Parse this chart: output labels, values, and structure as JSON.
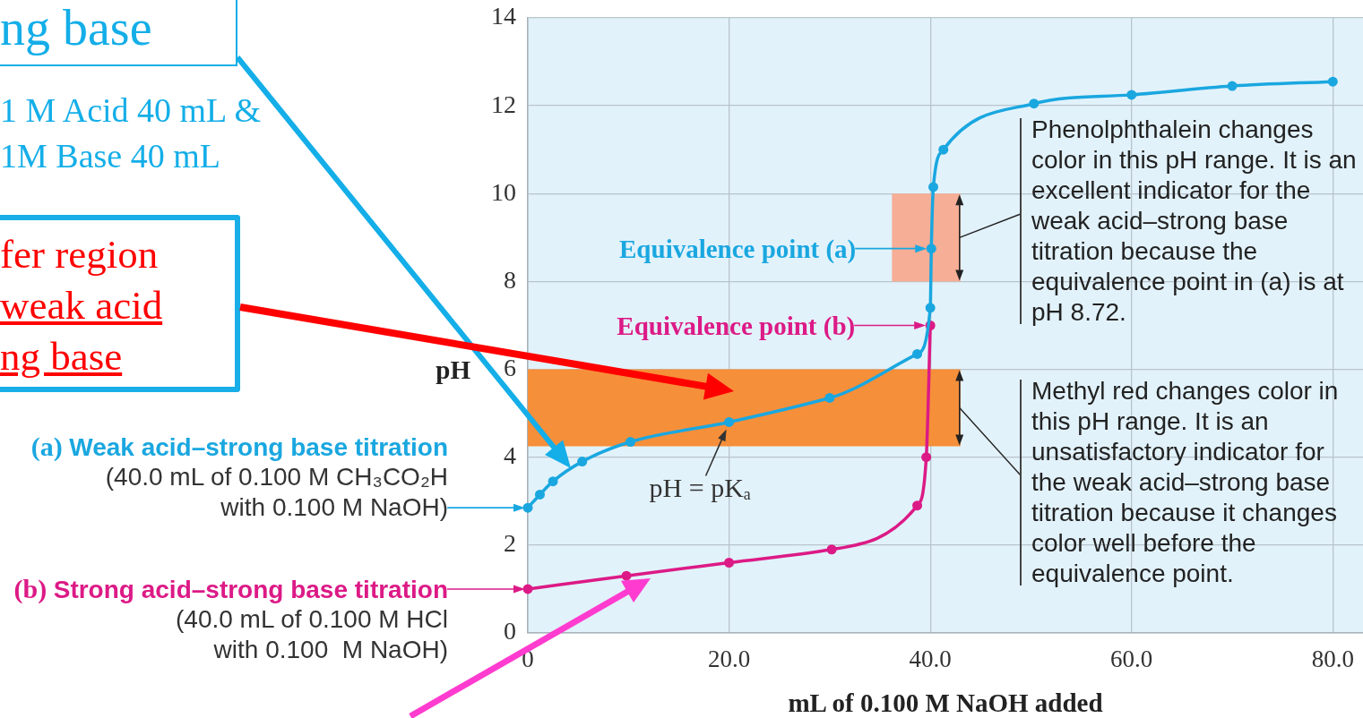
{
  "chart_data": {
    "type": "line",
    "xlabel": "mL of 0.100 M NaOH added",
    "ylabel": "pH",
    "xlim": [
      0,
      83
    ],
    "ylim": [
      0,
      14
    ],
    "xticks": [
      0,
      {
        "value": 20,
        "label": "20.0"
      },
      {
        "value": 40,
        "label": "40.0"
      },
      {
        "value": 60,
        "label": "60.0"
      },
      {
        "value": 80,
        "label": "80.0"
      }
    ],
    "yticks": [
      0,
      2,
      4,
      6,
      8,
      10,
      12,
      14
    ],
    "grid": true,
    "legend": false,
    "marker": "circle",
    "line_style": "solid",
    "series": [
      {
        "name": "(a) Weak acid–strong base titration",
        "color": "#1aa7e0",
        "x": [
          0,
          1.2,
          2.5,
          5.4,
          10.2,
          20,
          30,
          38.7,
          40,
          40.1,
          40.3,
          41.3,
          50.3,
          60,
          70,
          80
        ],
        "values": [
          2.85,
          3.15,
          3.45,
          3.9,
          4.35,
          4.8,
          5.35,
          6.35,
          7.4,
          8.75,
          10.15,
          11,
          12.05,
          12.25,
          12.45,
          12.55
        ]
      },
      {
        "name": "(b) Strong acid–strong base titration",
        "color": "#dc1a86",
        "x": [
          0,
          9.8,
          20,
          30.2,
          38.7,
          39.6,
          40
        ],
        "values": [
          1,
          1.3,
          1.6,
          1.9,
          2.9,
          4,
          7
        ]
      }
    ],
    "bands": [
      {
        "axis": "y",
        "from": 8,
        "to": 10,
        "label": "Phenolphthalein changes color in this pH range. It is an excellent indicator for the weak acid–strong base titration because the equivalence point in (a) is at pH 8.72.",
        "color": "#f6ae96"
      },
      {
        "axis": "y",
        "from": 4.25,
        "to": 6,
        "label": "Methyl red changes color in this pH range. It is an unsatisfactory indicator for the weak acid–strong base titration because it changes color well before the equivalence point.",
        "color": "#f68f3a"
      }
    ],
    "annotations": [
      "ng base",
      "1 M Acid 40 mL &\n1M Base 40 mL",
      "fer region\nweak acid\nng base",
      "(40.0 mL of 0.100 M CH₃CO₂H\nwith 0.100 M NaOH)",
      "(40.0 mL of 0.100 M HCl\nwith 0.100  M NaOH)",
      {
        "text": "Equivalence point (a)",
        "x": 40.1,
        "y": 8.75
      },
      {
        "text": "Equivalence point (b)",
        "x": 40,
        "y": 7
      },
      {
        "text": "pH = pKₐ",
        "x": 20,
        "y": 4.8
      }
    ]
  }
}
